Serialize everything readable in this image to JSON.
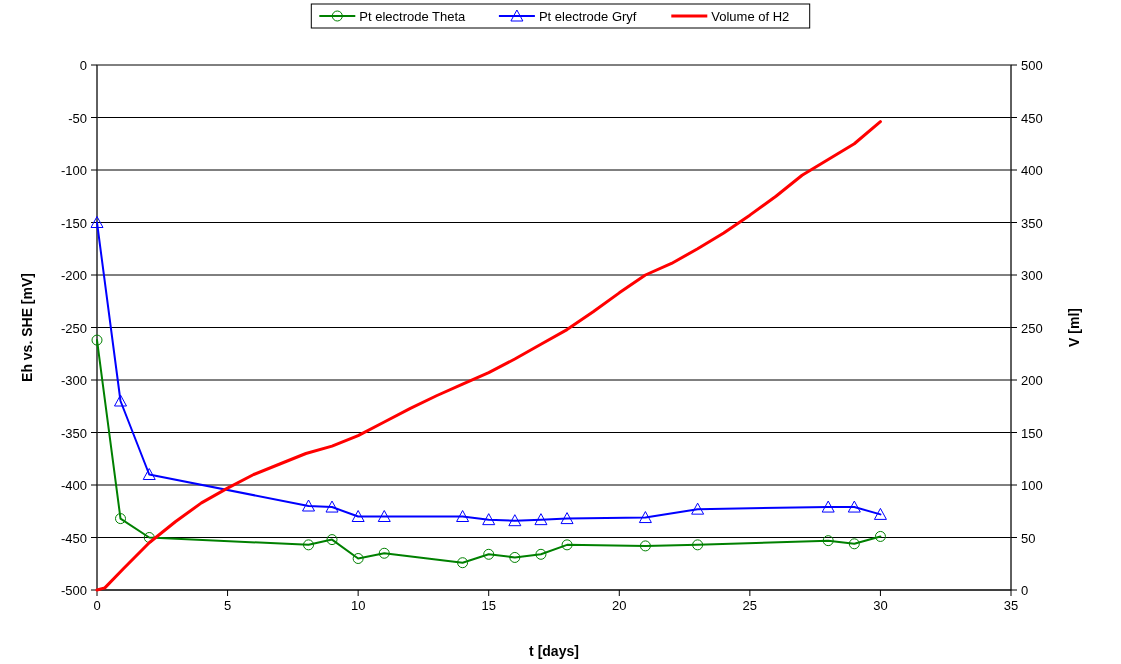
{
  "chart_data": {
    "type": "line",
    "xlabel": "t [days]",
    "ylabel": "Eh vs. SHE [mV]",
    "y2label": "V [ml]",
    "xlim": [
      0,
      35
    ],
    "xticks": [
      0,
      5,
      10,
      15,
      20,
      25,
      30,
      35
    ],
    "ylim": [
      -500,
      0
    ],
    "yticks": [
      -500,
      -450,
      -400,
      -350,
      -300,
      -250,
      -200,
      -150,
      -100,
      -50,
      0
    ],
    "y2lim": [
      0,
      500
    ],
    "y2ticks": [
      0,
      50,
      100,
      150,
      200,
      250,
      300,
      350,
      400,
      450,
      500
    ],
    "grid": "y",
    "legend": "top",
    "series": [
      {
        "name": "Pt electrode Theta",
        "color": "#008000",
        "marker": "circle",
        "x": [
          0,
          0.9,
          2,
          8.1,
          9,
          10,
          11,
          14,
          15,
          16,
          17,
          18,
          21,
          23,
          28,
          29,
          30
        ],
        "values": [
          -262,
          -432,
          -450,
          -457,
          -452,
          -470,
          -465,
          -474,
          -466,
          -469,
          -466,
          -457,
          -458,
          -457,
          -453,
          -456,
          -449
        ]
      },
      {
        "name": "Pt electrode Gryf",
        "color": "#0000ff",
        "marker": "triangle",
        "x": [
          0,
          0.9,
          2,
          8.1,
          9,
          10,
          11,
          14,
          15,
          16,
          17,
          18,
          21,
          23,
          28,
          29,
          30
        ],
        "values": [
          -150,
          -320,
          -390,
          -420,
          -421,
          -430,
          -430,
          -430,
          -433,
          -434,
          -433,
          -432,
          -431,
          -423,
          -421,
          -421,
          -428
        ]
      },
      {
        "name": "Volume of H2",
        "color": "#ff0000",
        "marker": "none",
        "axis": "y2",
        "x": [
          0,
          0.3,
          1,
          2,
          3,
          4,
          5,
          6,
          7,
          8,
          9,
          10,
          11,
          12,
          13,
          14,
          15,
          16,
          17,
          18,
          19,
          20,
          21,
          22,
          23,
          24,
          25,
          26,
          27,
          28,
          29,
          30
        ],
        "values": [
          0,
          2,
          20,
          45,
          65,
          83,
          97,
          110,
          120,
          130,
          137,
          147,
          160,
          173,
          185,
          196,
          207,
          220,
          234,
          248,
          265,
          283,
          300,
          311,
          325,
          340,
          357,
          375,
          395,
          410,
          425,
          446
        ]
      }
    ]
  }
}
